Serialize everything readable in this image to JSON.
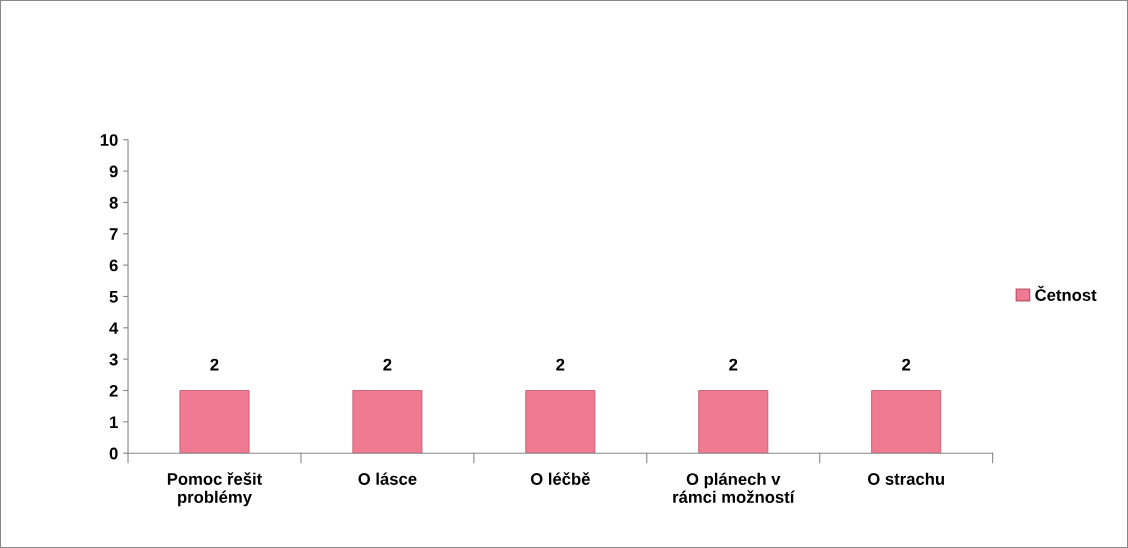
{
  "chart_data": {
    "type": "bar",
    "categories": [
      "Pomoc řešit problémy",
      "O lásce",
      "O léčbě",
      "O plánech v rámci možností",
      "O strachu"
    ],
    "series": [
      {
        "name": "Četnost",
        "color": "#f07a91",
        "values": [
          2,
          2,
          2,
          2,
          2
        ]
      }
    ],
    "ylim": [
      0,
      10
    ],
    "yticks": [
      0,
      1,
      2,
      3,
      4,
      5,
      6,
      7,
      8,
      9,
      10
    ],
    "data_labels": true,
    "legend": "right",
    "grid": false
  }
}
